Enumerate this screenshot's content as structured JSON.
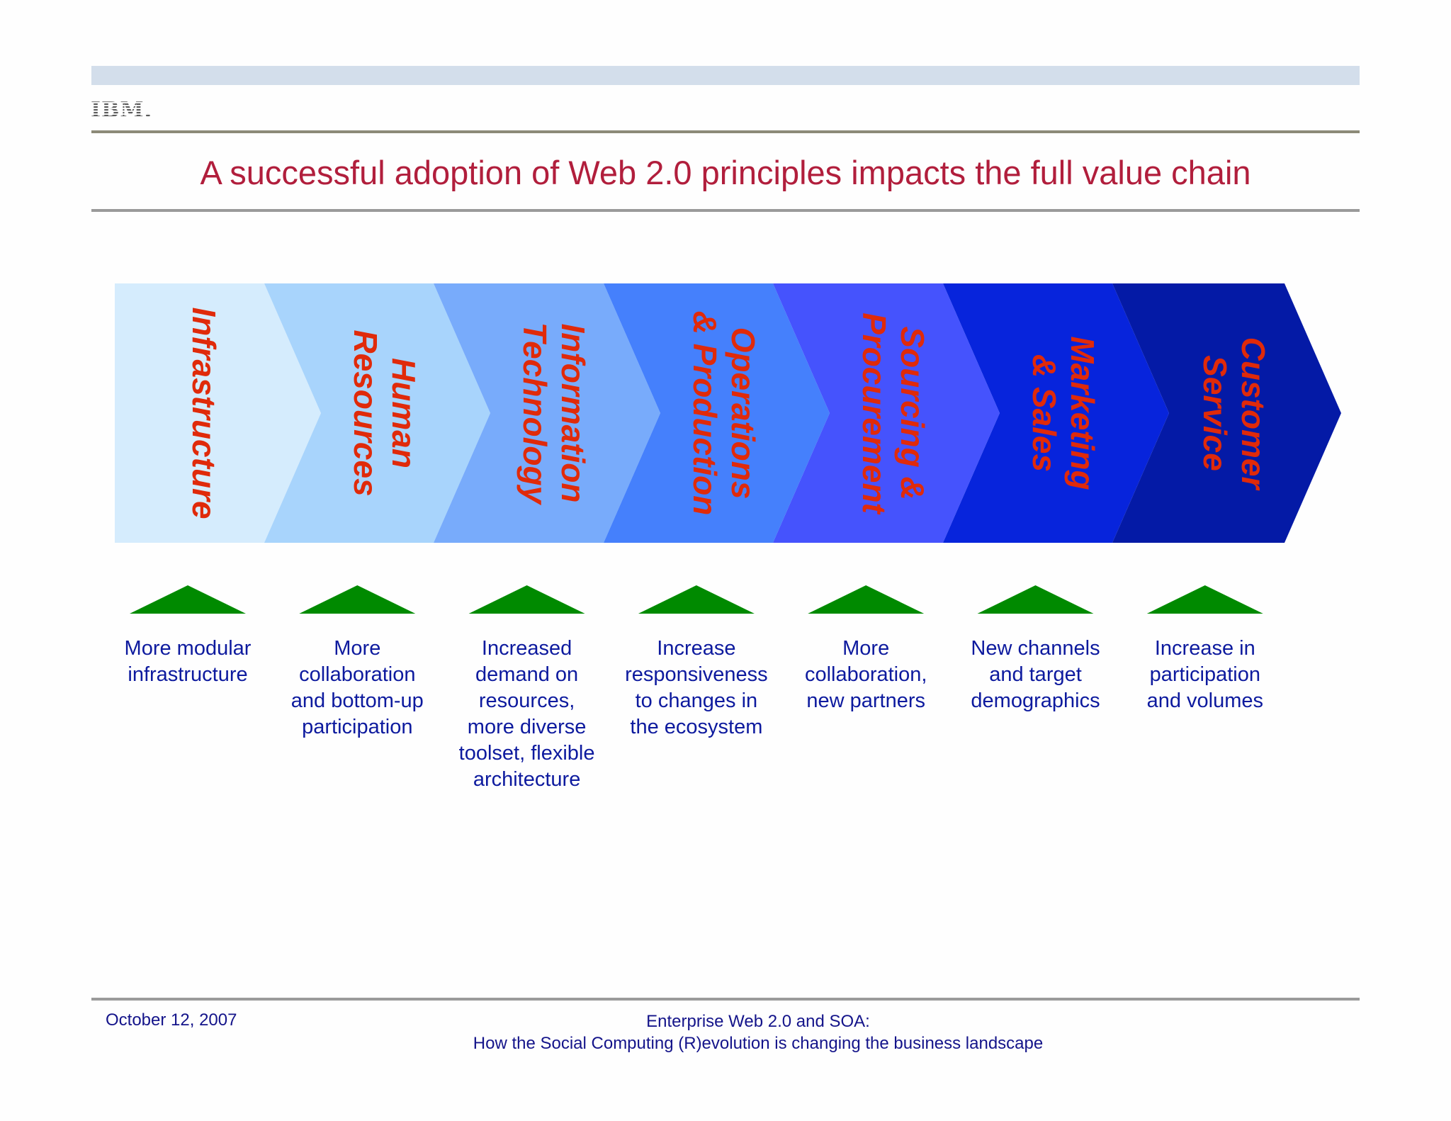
{
  "header": {
    "logo": "IBM.",
    "title": "A successful adoption of Web 2.0 principles impacts the full value chain"
  },
  "colors": {
    "title": "#b11e3c",
    "stage_label": "#e02a0a",
    "description": "#0d1a9e",
    "triangle": "#008a00",
    "header_band": "#d3deeb"
  },
  "value_chain": {
    "stages": [
      {
        "label_line1": "Infrastructure",
        "label_line2": "",
        "fill": "#d5ecfd",
        "description": [
          "More modular",
          "infrastructure"
        ]
      },
      {
        "label_line1": "Human",
        "label_line2": "Resources",
        "fill": "#a8d4fc",
        "description": [
          "More",
          "collaboration",
          "and bottom-up",
          "participation"
        ]
      },
      {
        "label_line1": "Information",
        "label_line2": "Technology",
        "fill": "#78abfb",
        "description": [
          "Increased",
          "demand on",
          "resources,",
          "more diverse",
          "toolset, flexible",
          "architecture"
        ]
      },
      {
        "label_line1": "Operations",
        "label_line2": "& Production",
        "fill": "#4580fc",
        "description": [
          "Increase",
          "responsiveness",
          "to changes in",
          "the ecosystem"
        ]
      },
      {
        "label_line1": "Sourcing &",
        "label_line2": "Procurement",
        "fill": "#4553fd",
        "description": [
          "More",
          "collaboration,",
          "new partners"
        ]
      },
      {
        "label_line1": "Marketing",
        "label_line2": "& Sales",
        "fill": "#0724dc",
        "description": [
          "New channels",
          "and target",
          "demographics"
        ]
      },
      {
        "label_line1": "Customer",
        "label_line2": "Service",
        "fill": "#041aa6",
        "description": [
          "Increase in",
          "participation",
          "and volumes"
        ]
      }
    ],
    "indicator_icon": "green-up-triangle-icon"
  },
  "footer": {
    "date": "October 12, 2007",
    "line1": "Enterprise Web 2.0 and SOA:",
    "line2": "How the Social Computing (R)evolution is changing the business landscape"
  }
}
